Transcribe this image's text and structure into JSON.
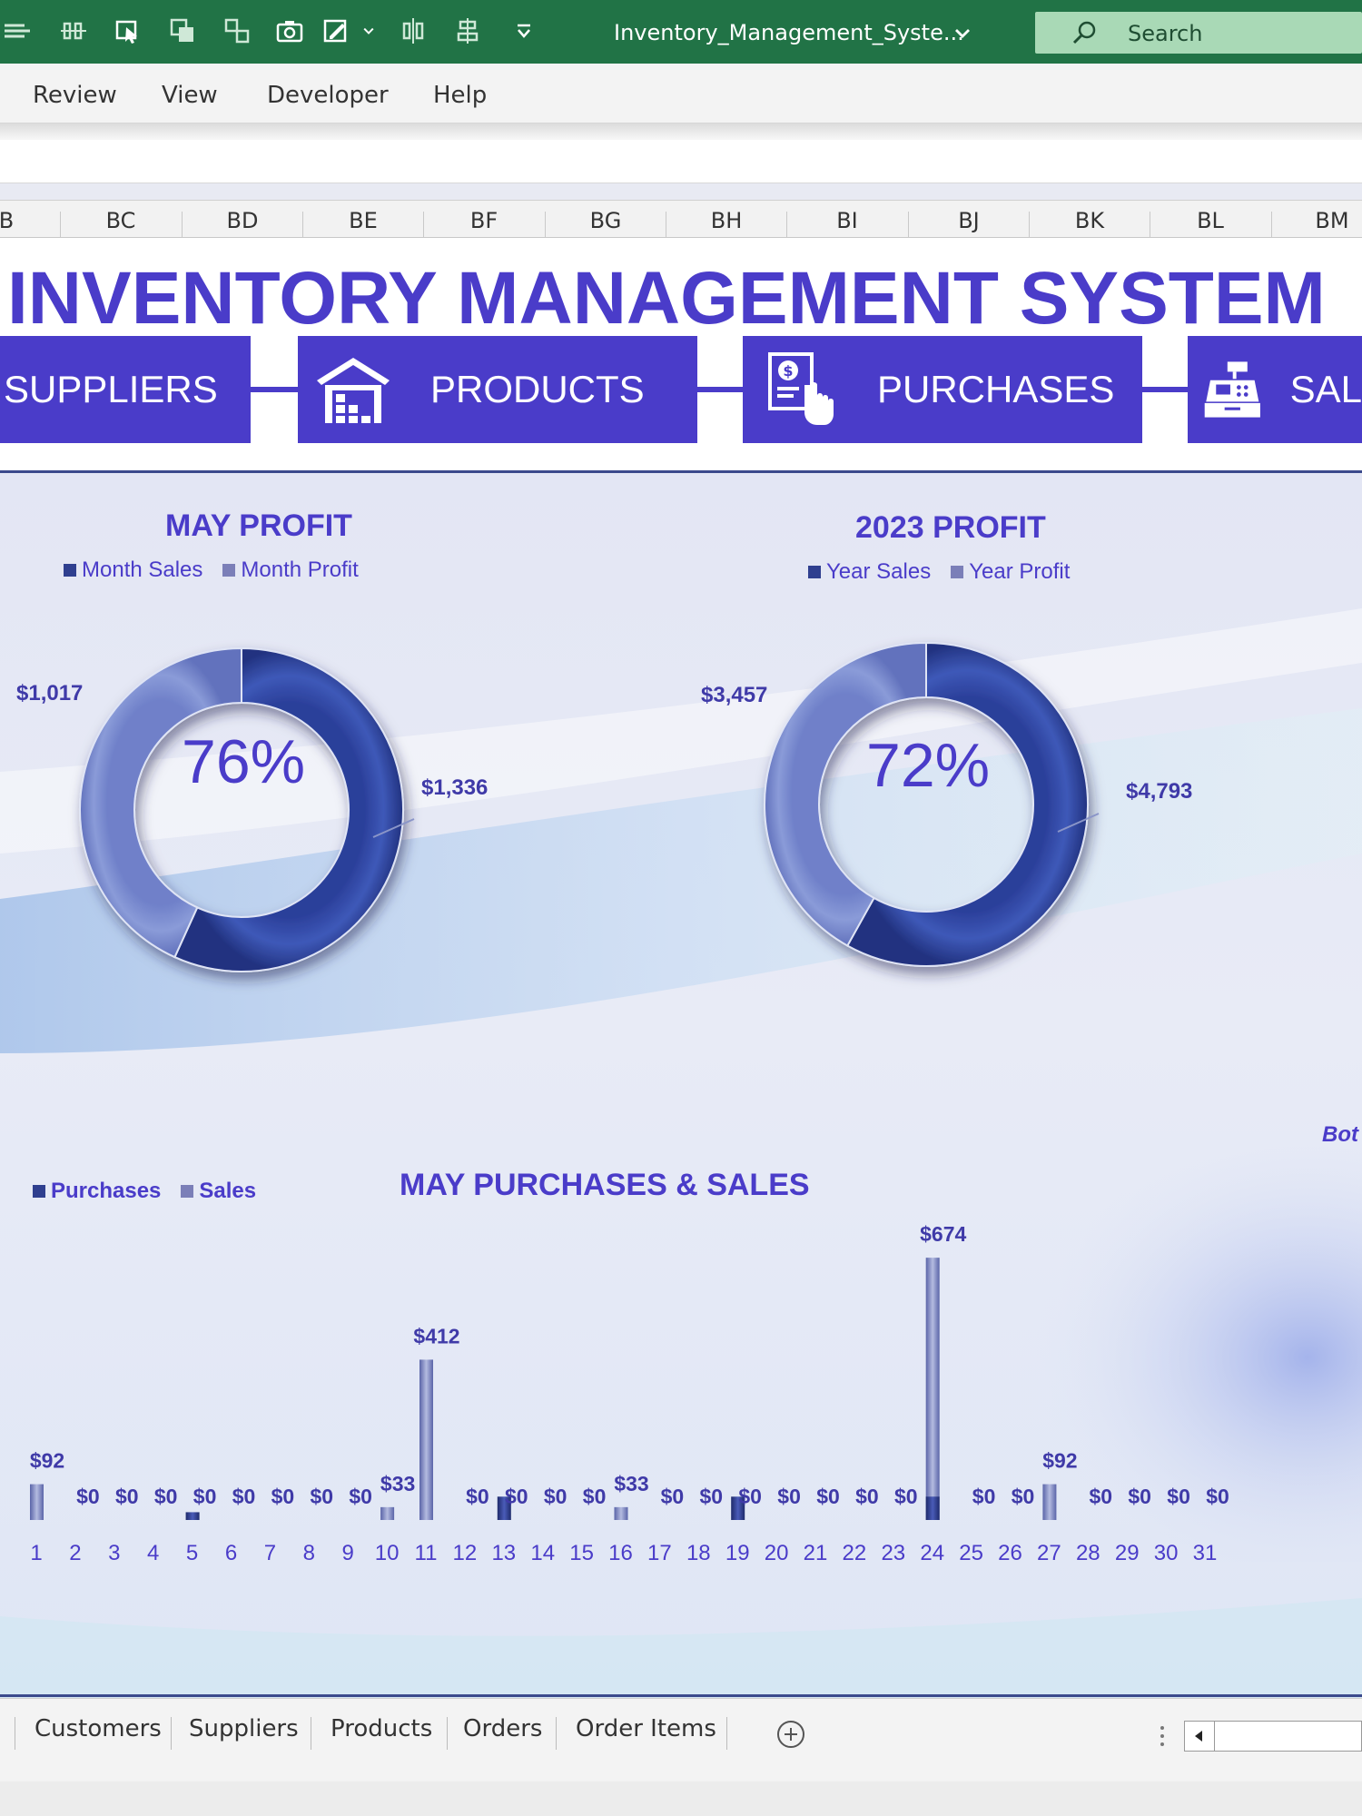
{
  "window": {
    "file_title": "Inventory_Management_Syste...",
    "search_placeholder": "Search"
  },
  "ribbon": {
    "tabs": [
      "Review",
      "View",
      "Developer",
      "Help"
    ]
  },
  "columns": [
    "B",
    "BC",
    "BD",
    "BE",
    "BF",
    "BG",
    "BH",
    "BI",
    "BJ",
    "BK",
    "BL",
    "BM"
  ],
  "dashboard": {
    "title": "INVENTORY MANAGEMENT SYSTEM",
    "nav": {
      "suppliers": "SUPPLIERS",
      "products": "PRODUCTS",
      "purchases": "PURCHASES",
      "sales": "SAL"
    },
    "side_note": "Bot"
  },
  "colors": {
    "accent": "#4a3cc9",
    "excel_green": "#217346",
    "ring_dark": "#3e59b8",
    "ring_light": "#8a9bd8"
  },
  "chart_data": [
    {
      "type": "pie",
      "title": "MAY PROFIT",
      "legend": [
        "Month Sales",
        "Month Profit"
      ],
      "center_label": "76%",
      "slices": [
        {
          "name": "Month Sales",
          "value": 1336,
          "label": "$1,336"
        },
        {
          "name": "Month Profit",
          "value": 1017,
          "label": "$1,017"
        }
      ]
    },
    {
      "type": "pie",
      "title": "2023 PROFIT",
      "legend": [
        "Year Sales",
        "Year Profit"
      ],
      "center_label": "72%",
      "slices": [
        {
          "name": "Year Sales",
          "value": 4793,
          "label": "$4,793"
        },
        {
          "name": "Year Profit",
          "value": 3457,
          "label": "$3,457"
        }
      ]
    },
    {
      "type": "bar",
      "title": "MAY PURCHASES & SALES",
      "legend": [
        "Purchases",
        "Sales"
      ],
      "categories": [
        "1",
        "2",
        "3",
        "4",
        "5",
        "6",
        "7",
        "8",
        "9",
        "10",
        "11",
        "12",
        "13",
        "14",
        "15",
        "16",
        "17",
        "18",
        "19",
        "20",
        "21",
        "22",
        "23",
        "24",
        "25",
        "26",
        "27",
        "28",
        "29",
        "30",
        "31"
      ],
      "series": [
        {
          "name": "Purchases",
          "values": [
            0,
            0,
            0,
            0,
            20,
            0,
            0,
            0,
            0,
            0,
            0,
            0,
            60,
            0,
            0,
            0,
            0,
            0,
            60,
            0,
            0,
            0,
            0,
            60,
            0,
            0,
            0,
            0,
            0,
            0,
            0
          ]
        },
        {
          "name": "Sales",
          "values": [
            92,
            0,
            0,
            0,
            0,
            0,
            0,
            0,
            0,
            33,
            412,
            0,
            0,
            0,
            0,
            33,
            0,
            0,
            0,
            0,
            0,
            0,
            0,
            674,
            0,
            0,
            92,
            0,
            0,
            0,
            0
          ]
        }
      ],
      "value_labels": [
        "$92",
        "$0",
        "$0",
        "$0",
        "$0",
        "$0",
        "$0",
        "$0",
        "$0",
        "$33",
        "$412",
        "$0",
        "$0",
        "$0",
        "$0",
        "$33",
        "$0",
        "$0",
        "$0",
        "$0",
        "$0",
        "$0",
        "$0",
        "$674",
        "$0",
        "$0",
        "$92",
        "$0",
        "$0",
        "$0",
        "$0"
      ]
    }
  ],
  "sheet_tabs": [
    "Customers",
    "Suppliers",
    "Products",
    "Orders",
    "Order Items"
  ]
}
